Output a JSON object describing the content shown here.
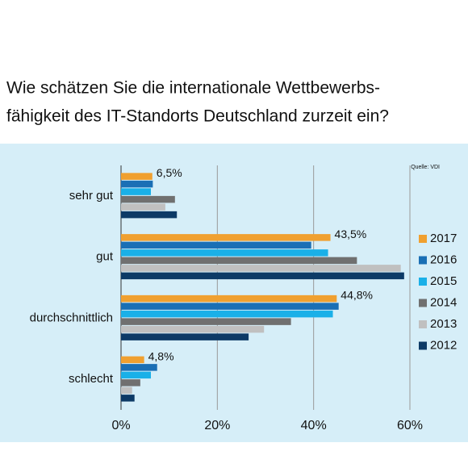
{
  "chart_data": {
    "type": "bar",
    "orientation": "horizontal",
    "title": [
      "Wie schätzen Sie die internationale Wettbewerbs-",
      "fähigkeit des IT-Standorts Deutschland zurzeit ein?"
    ],
    "source": "Quelle: VDI",
    "categories": [
      "sehr gut",
      "gut",
      "durchschnittlich",
      "schlecht"
    ],
    "series": [
      {
        "name": "2017",
        "color": "#f0a030",
        "values": [
          6.5,
          43.5,
          44.8,
          4.8
        ],
        "value_labels": [
          "6,5%",
          "43,5%",
          "44,8%",
          "4,8%"
        ]
      },
      {
        "name": "2016",
        "color": "#1a6fb5",
        "values": [
          6.6,
          39.5,
          45.2,
          7.5
        ]
      },
      {
        "name": "2015",
        "color": "#1ab0e8",
        "values": [
          6.2,
          43,
          44,
          6.2
        ]
      },
      {
        "name": "2014",
        "color": "#707070",
        "values": [
          11.2,
          49,
          35.3,
          4
        ]
      },
      {
        "name": "2013",
        "color": "#c0c0c0",
        "values": [
          9.2,
          58.1,
          29.7,
          2.3
        ]
      },
      {
        "name": "2012",
        "color": "#0d3a66",
        "values": [
          11.6,
          58.8,
          26.5,
          2.8
        ]
      }
    ],
    "xlim": [
      0,
      60
    ],
    "xticks": [
      {
        "value": 0,
        "label": "0%"
      },
      {
        "value": 20,
        "label": "20%"
      },
      {
        "value": 40,
        "label": "40%"
      },
      {
        "value": 60,
        "label": "60%"
      }
    ],
    "grid": true,
    "legend": "right"
  }
}
